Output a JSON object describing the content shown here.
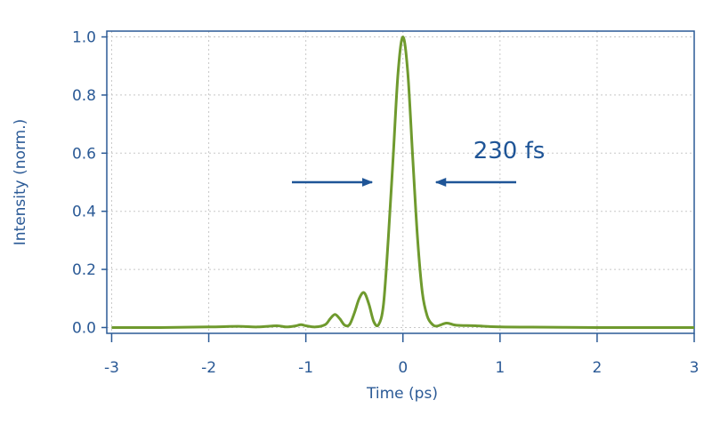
{
  "chart_data": {
    "type": "line",
    "x_label": "Time (ps)",
    "y_label": "Intensity (norm.)",
    "annotations": [
      {
        "text": "230 fs"
      }
    ],
    "x": [
      -3,
      -2.5,
      -2,
      -1.7,
      -1.5,
      -1.3,
      -1.2,
      -1.1,
      -1.05,
      -1.0,
      -0.9,
      -0.8,
      -0.75,
      -0.7,
      -0.65,
      -0.6,
      -0.55,
      -0.5,
      -0.45,
      -0.4,
      -0.35,
      -0.3,
      -0.25,
      -0.2,
      -0.15,
      -0.1,
      -0.05,
      0,
      0.05,
      0.1,
      0.15,
      0.2,
      0.25,
      0.3,
      0.35,
      0.45,
      0.55,
      0.75,
      1.0,
      1.5,
      2,
      3
    ],
    "series": [
      {
        "color": "#6f9a2e",
        "values": [
          0,
          0,
          0.002,
          0.004,
          0.002,
          0.006,
          0.002,
          0.006,
          0.01,
          0.006,
          0.002,
          0.01,
          0.03,
          0.045,
          0.03,
          0.008,
          0.01,
          0.05,
          0.1,
          0.12,
          0.08,
          0.02,
          0.01,
          0.08,
          0.31,
          0.59,
          0.877,
          1.0,
          0.877,
          0.59,
          0.31,
          0.12,
          0.04,
          0.012,
          0.005,
          0.015,
          0.008,
          0.006,
          0.002,
          0.001,
          0,
          0
        ]
      }
    ],
    "xlim": [
      -3.05,
      3.0
    ],
    "ylim": [
      -0.02,
      1.02
    ],
    "xticks": [
      -3,
      -2,
      -1,
      0,
      1,
      2,
      3
    ],
    "yticks": [
      {
        "value": 0,
        "label": "0.0"
      },
      0.2,
      0.4,
      0.6,
      0.8,
      {
        "value": 1,
        "label": "1.0"
      }
    ],
    "grid": true
  }
}
